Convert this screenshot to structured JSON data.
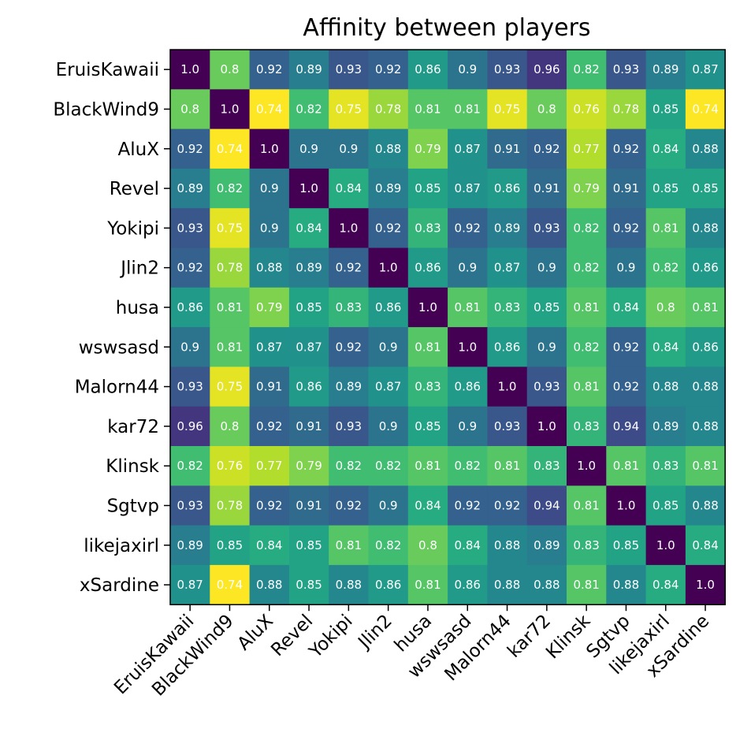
{
  "chart_data": {
    "type": "heatmap",
    "title": "Affinity between players",
    "xlabel": "",
    "ylabel": "",
    "colormap": "viridis",
    "value_range": [
      0.74,
      1.0
    ],
    "grid": false,
    "legend": "none",
    "row_labels": [
      "EruisKawaii",
      "BlackWind9",
      "AluX",
      "Revel",
      "Yokipi",
      "Jlin2",
      "husa",
      "wswsasd",
      "Malorn44",
      "kar72",
      "Klinsk",
      "Sgtvp",
      "likejaxirl",
      "xSardine"
    ],
    "col_labels": [
      "EruisKawaii",
      "BlackWind9",
      "AluX",
      "Revel",
      "Yokipi",
      "Jlin2",
      "husa",
      "wswsasd",
      "Malorn44",
      "kar72",
      "Klinsk",
      "Sgtvp",
      "likejaxirl",
      "xSardine"
    ],
    "values": [
      [
        "1.0",
        "0.8",
        "0.92",
        "0.89",
        "0.93",
        "0.92",
        "0.86",
        "0.9",
        "0.93",
        "0.96",
        "0.82",
        "0.93",
        "0.89",
        "0.87"
      ],
      [
        "0.8",
        "1.0",
        "0.74",
        "0.82",
        "0.75",
        "0.78",
        "0.81",
        "0.81",
        "0.75",
        "0.8",
        "0.76",
        "0.78",
        "0.85",
        "0.74"
      ],
      [
        "0.92",
        "0.74",
        "1.0",
        "0.9",
        "0.9",
        "0.88",
        "0.79",
        "0.87",
        "0.91",
        "0.92",
        "0.77",
        "0.92",
        "0.84",
        "0.88"
      ],
      [
        "0.89",
        "0.82",
        "0.9",
        "1.0",
        "0.84",
        "0.89",
        "0.85",
        "0.87",
        "0.86",
        "0.91",
        "0.79",
        "0.91",
        "0.85",
        "0.85"
      ],
      [
        "0.93",
        "0.75",
        "0.9",
        "0.84",
        "1.0",
        "0.92",
        "0.83",
        "0.92",
        "0.89",
        "0.93",
        "0.82",
        "0.92",
        "0.81",
        "0.88"
      ],
      [
        "0.92",
        "0.78",
        "0.88",
        "0.89",
        "0.92",
        "1.0",
        "0.86",
        "0.9",
        "0.87",
        "0.9",
        "0.82",
        "0.9",
        "0.82",
        "0.86"
      ],
      [
        "0.86",
        "0.81",
        "0.79",
        "0.85",
        "0.83",
        "0.86",
        "1.0",
        "0.81",
        "0.83",
        "0.85",
        "0.81",
        "0.84",
        "0.8",
        "0.81"
      ],
      [
        "0.9",
        "0.81",
        "0.87",
        "0.87",
        "0.92",
        "0.9",
        "0.81",
        "1.0",
        "0.86",
        "0.9",
        "0.82",
        "0.92",
        "0.84",
        "0.86"
      ],
      [
        "0.93",
        "0.75",
        "0.91",
        "0.86",
        "0.89",
        "0.87",
        "0.83",
        "0.86",
        "1.0",
        "0.93",
        "0.81",
        "0.92",
        "0.88",
        "0.88"
      ],
      [
        "0.96",
        "0.8",
        "0.92",
        "0.91",
        "0.93",
        "0.9",
        "0.85",
        "0.9",
        "0.93",
        "1.0",
        "0.83",
        "0.94",
        "0.89",
        "0.88"
      ],
      [
        "0.82",
        "0.76",
        "0.77",
        "0.79",
        "0.82",
        "0.82",
        "0.81",
        "0.82",
        "0.81",
        "0.83",
        "1.0",
        "0.81",
        "0.83",
        "0.81"
      ],
      [
        "0.93",
        "0.78",
        "0.92",
        "0.91",
        "0.92",
        "0.9",
        "0.84",
        "0.92",
        "0.92",
        "0.94",
        "0.81",
        "1.0",
        "0.85",
        "0.88"
      ],
      [
        "0.89",
        "0.85",
        "0.84",
        "0.85",
        "0.81",
        "0.82",
        "0.8",
        "0.84",
        "0.88",
        "0.89",
        "0.83",
        "0.85",
        "1.0",
        "0.84"
      ],
      [
        "0.87",
        "0.74",
        "0.88",
        "0.85",
        "0.88",
        "0.86",
        "0.81",
        "0.86",
        "0.88",
        "0.88",
        "0.81",
        "0.88",
        "0.84",
        "1.0"
      ]
    ]
  }
}
